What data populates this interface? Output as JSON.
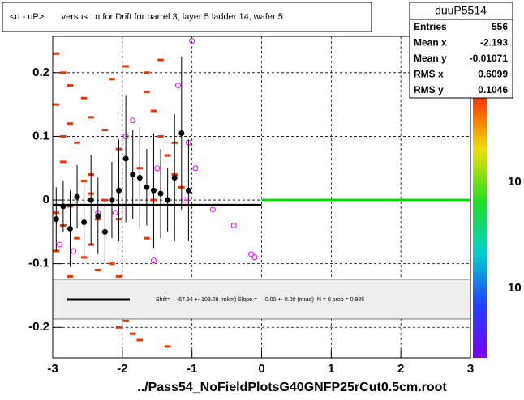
{
  "chart_data": {
    "type": "hist2d",
    "title": "<u - uP>       versus   u for Drift for barrel 3, layer 5 ladder 14, wafer 5",
    "footer": "../Pass54_NoFieldPlotsG40GNFP25rCut0.5cm.root",
    "xlim": [
      -3,
      3
    ],
    "ylim": [
      -0.248,
      0.257
    ],
    "xticks": [
      -3,
      -2,
      -1,
      0,
      1,
      2,
      3
    ],
    "yticks": [
      -0.2,
      -0.1,
      0,
      0.1,
      0.2
    ],
    "grid": true,
    "cells": {
      "color": "#ee3300",
      "x": [
        -2.95,
        -2.85,
        -2.95,
        -2.75,
        -2.65,
        -2.85,
        -2.55,
        -2.45,
        -2.75,
        -2.35,
        -2.25,
        -2.45,
        -2.15,
        -2.05,
        -1.95,
        -1.85,
        -2.05,
        -1.75,
        -1.65,
        -1.55,
        -1.45,
        -1.35,
        -1.25,
        -1.15,
        -2.95,
        -2.85,
        -2.65,
        -2.55,
        -2.35,
        -2.25,
        -2.15,
        -1.95,
        -1.85,
        -1.65,
        -1.45,
        -2.75,
        -2.55,
        -2.45,
        -2.25,
        -2.05,
        -1.75,
        -1.55,
        -2.95,
        -2.65,
        -2.35,
        -2.15,
        -1.95,
        -1.35,
        -2.85,
        -2.45,
        -2.05,
        -1.65,
        -1.25,
        -2.75,
        -2.25
      ],
      "y": [
        0.23,
        0.2,
        0.15,
        0.12,
        0.09,
        0.06,
        0.03,
        0.01,
        -0.01,
        -0.03,
        -0.05,
        -0.07,
        -0.1,
        -0.12,
        -0.15,
        -0.18,
        -0.2,
        -0.22,
        0.17,
        0.14,
        0.1,
        0.07,
        0.04,
        0.02,
        -0.02,
        -0.04,
        -0.06,
        -0.09,
        -0.11,
        -0.13,
        -0.16,
        -0.19,
        -0.21,
        0.2,
        0.22,
        0.18,
        0.16,
        0.13,
        0.11,
        0.08,
        0.05,
        0.0,
        -0.08,
        -0.14,
        -0.17,
        0.19,
        0.21,
        -0.23,
        0.1,
        0.04,
        -0.03,
        -0.06,
        0.09,
        -0.12,
        0.0
      ]
    },
    "profile": {
      "color": "#000000",
      "x": [
        -2.95,
        -2.85,
        -2.75,
        -2.65,
        -2.55,
        -2.45,
        -2.35,
        -2.25,
        -2.15,
        -2.05,
        -1.95,
        -1.85,
        -1.75,
        -1.65,
        -1.55,
        -1.45,
        -1.35,
        -1.25,
        -1.15,
        -1.05
      ],
      "y": [
        -0.03,
        -0.01,
        -0.045,
        0.005,
        -0.035,
        0.0,
        -0.025,
        -0.05,
        0.0,
        0.015,
        0.065,
        0.04,
        0.035,
        0.02,
        0.015,
        0.01,
        0.0,
        0.035,
        0.105,
        0.015
      ],
      "err": [
        0.05,
        0.04,
        0.06,
        0.05,
        0.06,
        0.07,
        0.06,
        0.05,
        0.06,
        0.08,
        0.1,
        0.07,
        0.08,
        0.06,
        0.09,
        0.07,
        0.05,
        0.1,
        0.12,
        0.08
      ]
    },
    "markers": {
      "color": "#ee00ee",
      "x": [
        -2.9,
        -2.7,
        -2.35,
        -2.1,
        -1.95,
        -1.85,
        -1.55,
        -1.5,
        -1.2,
        -1.1,
        -0.95,
        -1.05,
        -0.4,
        -0.15,
        -0.1,
        -0.7,
        -1.0
      ],
      "y": [
        -0.07,
        -0.08,
        -0.02,
        -0.02,
        0.1,
        0.125,
        -0.095,
        0.05,
        0.18,
        0.0,
        0.05,
        0.09,
        -0.04,
        -0.085,
        -0.09,
        -0.015,
        0.25
      ]
    },
    "fit_lines": [
      {
        "color": "#000000",
        "x": [
          -3,
          0
        ],
        "y": [
          -0.008,
          -0.008
        ]
      },
      {
        "color": "#00dd00",
        "x": [
          0,
          3
        ],
        "y": [
          0,
          0
        ]
      }
    ],
    "fit_text": "Shift=    -67.94 +- 103.08 (mkm) Slope =     0.00 +- 0.00 (mrad)  N = 0 prob = 0.985",
    "stats": {
      "title": "duuP5514",
      "rows": [
        [
          "Entries",
          "556"
        ],
        [
          "Mean x",
          "-2.193"
        ],
        [
          "Mean y",
          "-0.01071"
        ],
        [
          "RMS x",
          "0.6099"
        ],
        [
          "RMS y",
          "0.1046"
        ]
      ]
    },
    "zaxis_labels": [
      "10",
      "10"
    ]
  }
}
